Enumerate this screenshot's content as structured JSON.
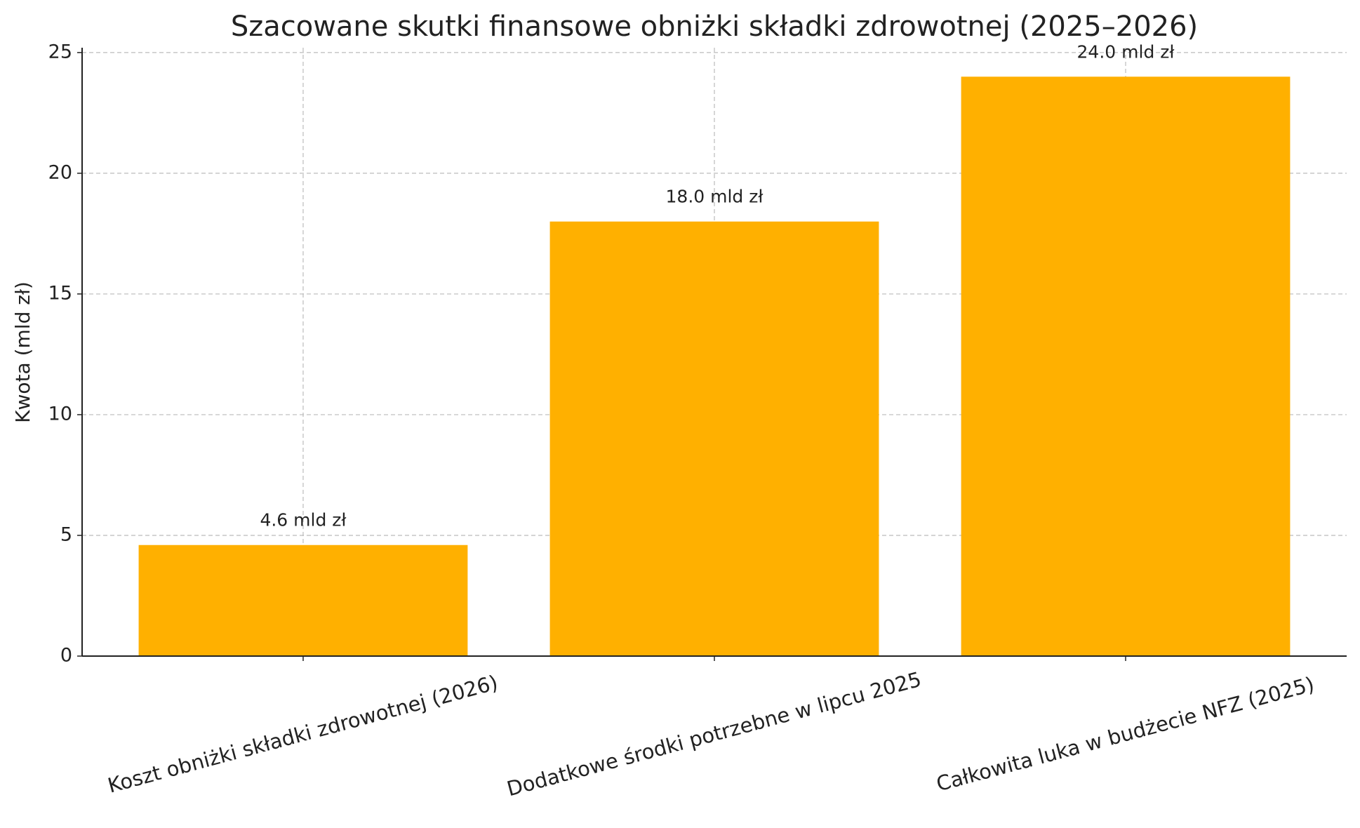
{
  "chart_data": {
    "type": "bar",
    "title": "Szacowane skutki finansowe obniżki składki zdrowotnej (2025–2026)",
    "y_label": "Kwota (mld zł)",
    "categories": [
      "Koszt obniżki składki zdrowotnej (2026)",
      "Dodatkowe środki potrzebne w lipcu 2025",
      "Całkowita luka w budżecie NFZ (2025)"
    ],
    "values": [
      4.6,
      18.0,
      24.0
    ],
    "value_labels": [
      "4.6 mld zł",
      "18.0 mld zł",
      "24.0 mld zł"
    ],
    "color": "#ffb000",
    "ylim": [
      0,
      25.2
    ],
    "yticks": [
      0,
      5,
      10,
      15,
      20,
      25
    ],
    "grid": true
  }
}
